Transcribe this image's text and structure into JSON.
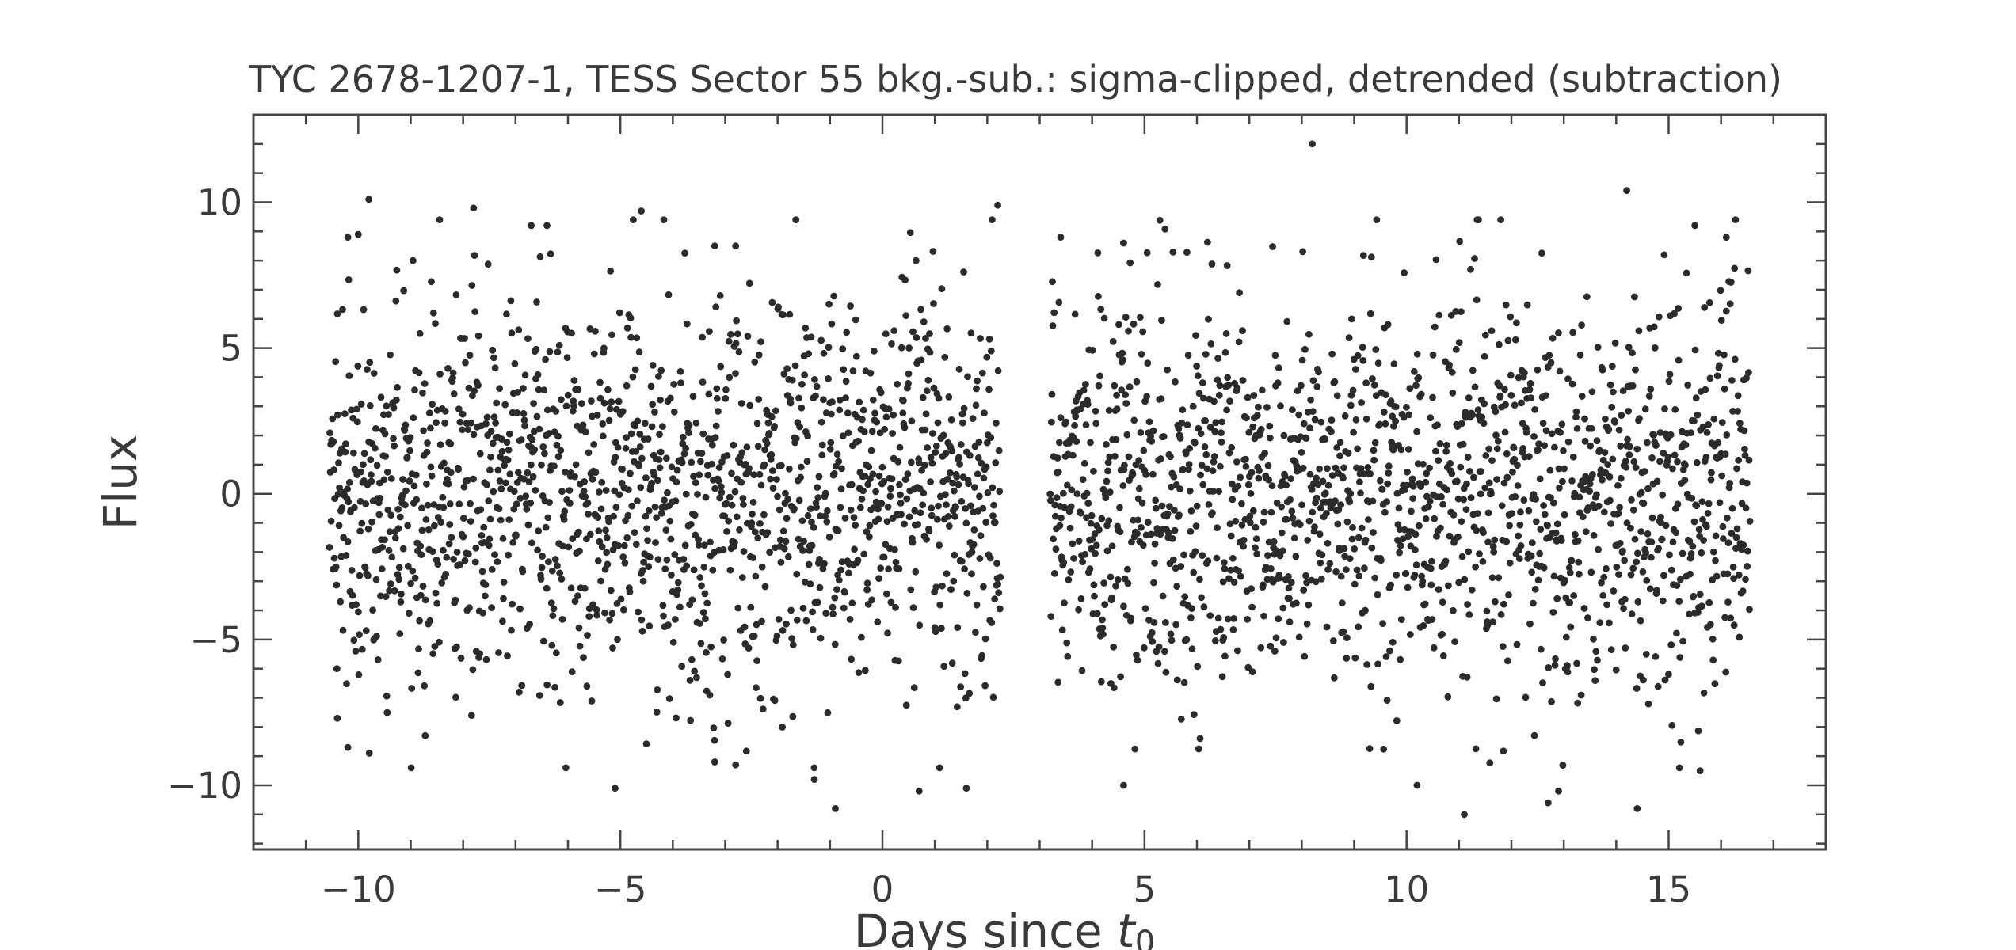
{
  "chart_data": {
    "type": "scatter",
    "title": "TYC 2678-1207-1, TESS Sector 55 bkg.-sub.: sigma-clipped, detrended (subtraction)",
    "xlabel": "Days since t",
    "xlabel_subscript": "0",
    "ylabel": "Flux",
    "xlim": [
      -12,
      18
    ],
    "ylim": [
      -12.2,
      13.0
    ],
    "xticks": [
      -10,
      -5,
      0,
      5,
      10,
      15
    ],
    "xtick_labels": [
      "−10",
      "−5",
      "0",
      "5",
      "10",
      "15"
    ],
    "yticks": [
      -10,
      -5,
      0,
      5,
      10
    ],
    "ytick_labels": [
      "−10",
      "−5",
      "0",
      "5",
      "10"
    ],
    "x_minor_step": 1,
    "y_minor_step": 1,
    "grid": false,
    "colors": {
      "points": "#2b2b2b",
      "axes": "#444444",
      "text": "#3a3a3a"
    },
    "point_density_per_day": 120,
    "series": [
      {
        "segments": [
          {
            "x_start": -10.55,
            "x_end": 2.25,
            "mean": 0.0,
            "std": 3.3
          },
          {
            "x_start": 3.2,
            "x_end": 16.55,
            "mean": 0.0,
            "std": 3.3
          }
        ],
        "notable_points": [
          {
            "x": -10.2,
            "y": 8.8
          },
          {
            "x": -10.0,
            "y": 8.9
          },
          {
            "x": -9.8,
            "y": 10.1
          },
          {
            "x": -7.8,
            "y": 9.8
          },
          {
            "x": -6.7,
            "y": 9.2
          },
          {
            "x": -6.4,
            "y": 9.2
          },
          {
            "x": -4.6,
            "y": 9.7
          },
          {
            "x": -3.2,
            "y": 8.5
          },
          {
            "x": -2.8,
            "y": 8.5
          },
          {
            "x": 2.2,
            "y": 9.9
          },
          {
            "x": 3.4,
            "y": 8.8
          },
          {
            "x": 4.6,
            "y": 8.6
          },
          {
            "x": 8.2,
            "y": 12.0
          },
          {
            "x": 14.2,
            "y": 10.4
          },
          {
            "x": 15.5,
            "y": 9.2
          },
          {
            "x": 16.1,
            "y": 8.8
          },
          {
            "x": -10.4,
            "y": -7.7
          },
          {
            "x": -10.2,
            "y": -8.7
          },
          {
            "x": -5.1,
            "y": -10.1
          },
          {
            "x": -3.2,
            "y": -9.2
          },
          {
            "x": -2.8,
            "y": -9.3
          },
          {
            "x": -1.3,
            "y": -9.8
          },
          {
            "x": -0.9,
            "y": -10.8
          },
          {
            "x": 0.7,
            "y": -10.2
          },
          {
            "x": 1.6,
            "y": -10.1
          },
          {
            "x": 4.6,
            "y": -10.0
          },
          {
            "x": 10.2,
            "y": -10.0
          },
          {
            "x": 11.1,
            "y": -11.0
          },
          {
            "x": 12.7,
            "y": -10.6
          },
          {
            "x": 12.9,
            "y": -10.2
          },
          {
            "x": 14.4,
            "y": -10.8
          },
          {
            "x": 15.6,
            "y": -9.5
          }
        ]
      }
    ]
  }
}
